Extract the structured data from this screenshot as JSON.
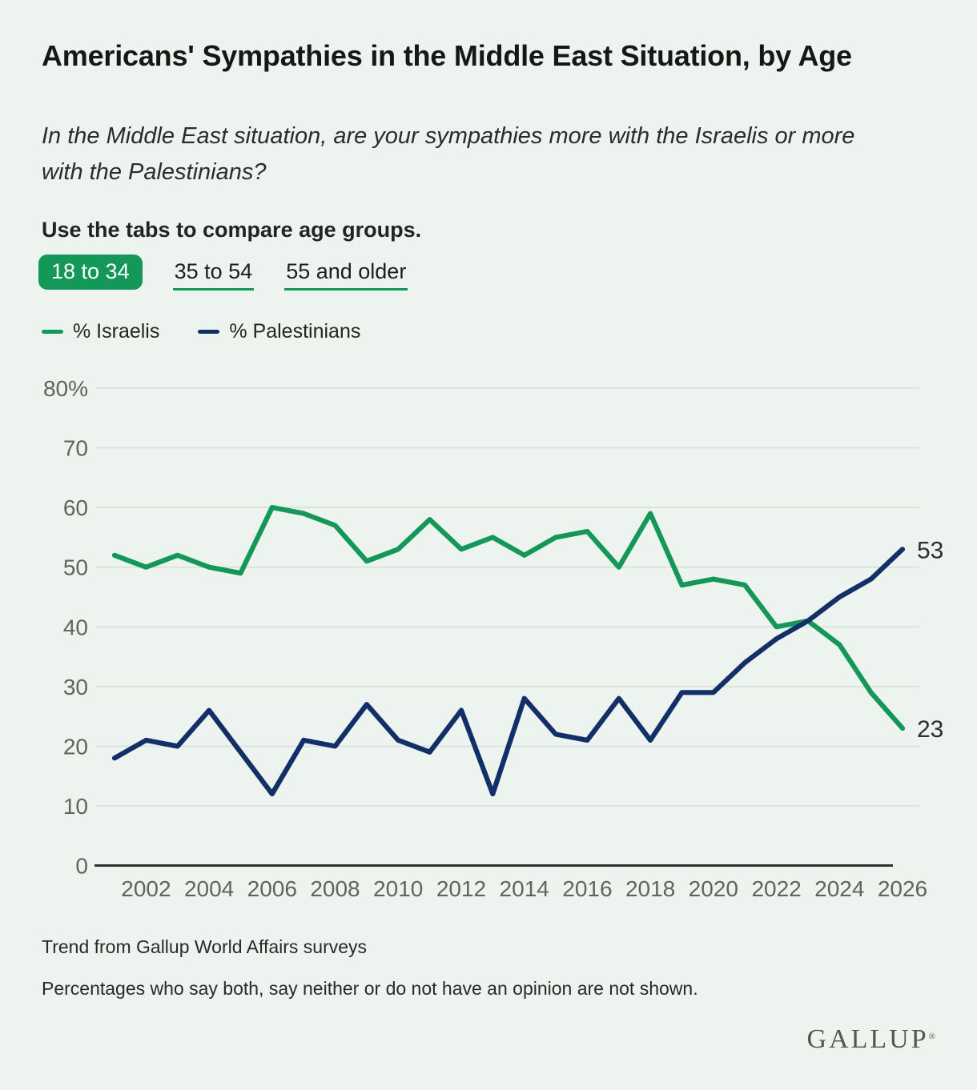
{
  "header": {
    "title": "Americans' Sympathies in the Middle East Situation, by Age",
    "subtitle": "In the Middle East situation, are your sympathies more with the Israelis or more with the Palestinians?",
    "tabs_instruction": "Use the tabs to compare age groups.",
    "tabs": [
      {
        "label": "18 to 34",
        "active": true
      },
      {
        "label": "35 to 54",
        "active": false
      },
      {
        "label": "55 and older",
        "active": false
      }
    ]
  },
  "colors": {
    "accent_green": "#14985a",
    "navy": "#132f68",
    "background": "#edf3ee",
    "gridline": "#d8e0d9",
    "axis": "#2e322e",
    "tick_text": "#5e655e"
  },
  "legend": [
    {
      "label": "% Israelis",
      "color": "#14985a"
    },
    {
      "label": "% Palestinians",
      "color": "#132f68"
    }
  ],
  "chart_data": {
    "type": "line",
    "title": "Americans' Sympathies in the Middle East Situation, by Age — 18 to 34",
    "x": [
      2001,
      2002,
      2003,
      2004,
      2005,
      2006,
      2007,
      2008,
      2009,
      2010,
      2011,
      2012,
      2013,
      2014,
      2015,
      2016,
      2017,
      2018,
      2019,
      2020,
      2021,
      2022,
      2023,
      2024,
      2025,
      2026
    ],
    "series": [
      {
        "name": "% Israelis",
        "color": "#14985a",
        "values": [
          52,
          50,
          52,
          50,
          49,
          60,
          59,
          57,
          51,
          53,
          58,
          53,
          55,
          52,
          55,
          56,
          50,
          59,
          47,
          48,
          47,
          40,
          41,
          37,
          29,
          23
        ],
        "end_label": "23"
      },
      {
        "name": "% Palestinians",
        "color": "#132f68",
        "values": [
          18,
          21,
          20,
          26,
          19,
          12,
          21,
          20,
          27,
          21,
          19,
          26,
          12,
          28,
          22,
          21,
          28,
          21,
          29,
          29,
          34,
          38,
          41,
          45,
          48,
          53
        ],
        "end_label": "53"
      }
    ],
    "ylim": [
      0,
      80
    ],
    "yticks": [
      {
        "value": 80,
        "label": "80%"
      },
      {
        "value": 70,
        "label": "70"
      },
      {
        "value": 60,
        "label": "60"
      },
      {
        "value": 50,
        "label": "50"
      },
      {
        "value": 40,
        "label": "40"
      },
      {
        "value": 30,
        "label": "30"
      },
      {
        "value": 20,
        "label": "20"
      },
      {
        "value": 10,
        "label": "10"
      },
      {
        "value": 0,
        "label": "0"
      }
    ],
    "xticks": [
      2002,
      2004,
      2006,
      2008,
      2010,
      2012,
      2014,
      2016,
      2018,
      2020,
      2022,
      2024,
      2026
    ],
    "grid": true,
    "legend_position": "top-left"
  },
  "footnotes": [
    "Trend from Gallup World Affairs surveys",
    "Percentages who say both, say neither or do not have an opinion are not shown."
  ],
  "branding": {
    "logo_text": "GALLUP",
    "registered_mark": "®"
  }
}
